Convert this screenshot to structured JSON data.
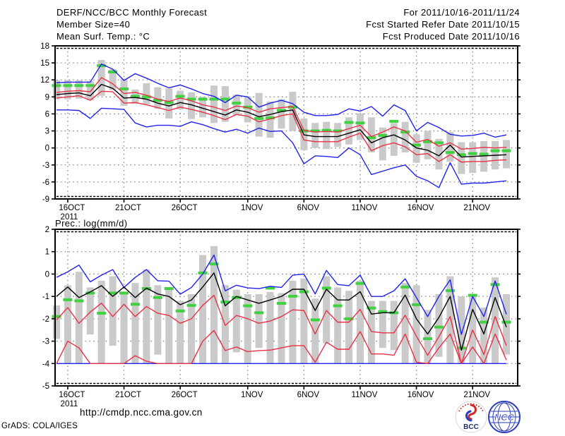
{
  "header": {
    "left": [
      "DERF/NCC/BCC Monthly Forecast",
      "Member Size=40",
      "Mean Surf. Temp.: °C"
    ],
    "right": [
      "For 2011/10/16-2011/11/24",
      "Fcst Started Refer Date 2011/10/15",
      "Fcst Produced Date 2011/10/16"
    ]
  },
  "footer": {
    "url": "http://cmdp.ncc.cma.gov.cn",
    "credit": "GrADS: COLA/IGES",
    "logo_bcc_label": "BCC",
    "logo_ncc_label": "NCC"
  },
  "colors": {
    "blue": "#2222ee",
    "red": "#e83248",
    "black": "#000000",
    "green": "#3fd13f",
    "gray_bar": "#cacaca",
    "grid": "#8a8a8a",
    "logo_red": "#cc2a2a",
    "logo_blue": "#2d3fba"
  },
  "chart_data": [
    {
      "type": "line",
      "title": "Mean Surf. Temp.: °C",
      "n_points": 41,
      "x_start": "15OCT2011",
      "ylim": [
        -9,
        18
      ],
      "yticks": [
        18,
        15,
        12,
        9,
        6,
        3,
        0,
        -3,
        -6,
        -9
      ],
      "xticks": [
        {
          "label": "16OCT",
          "day": 1,
          "sublabel": "2011"
        },
        {
          "label": "21OCT",
          "day": 6
        },
        {
          "label": "26OCT",
          "day": 11
        },
        {
          "label": "1NOV",
          "day": 17
        },
        {
          "label": "6NOV",
          "day": 22
        },
        {
          "label": "11NOV",
          "day": 27
        },
        {
          "label": "16NOV",
          "day": 32
        },
        {
          "label": "21NOV",
          "day": 37
        }
      ],
      "series": [
        {
          "name": "ensemble-max",
          "color": "blue",
          "values": [
            11.5,
            11.6,
            11.6,
            11.6,
            14.8,
            13.9,
            11.9,
            13.1,
            12.3,
            11.4,
            10.6,
            11.1,
            10.4,
            9.6,
            9.1,
            8.0,
            9.3,
            9.0,
            7.2,
            7.9,
            8.4,
            7.8,
            6.3,
            5.7,
            5.7,
            5.9,
            6.9,
            6.5,
            7.3,
            5.6,
            7.6,
            6.6,
            3.0,
            4.5,
            3.6,
            2.4,
            2.1,
            2.2,
            2.6,
            1.9,
            2.3
          ]
        },
        {
          "name": "upper-quartile",
          "color": "red",
          "values": [
            9.8,
            10.0,
            10.1,
            9.9,
            12.4,
            11.3,
            9.6,
            9.8,
            9.3,
            8.6,
            8.2,
            8.8,
            8.3,
            7.6,
            7.2,
            6.6,
            7.4,
            7.1,
            6.3,
            6.9,
            7.1,
            7.3,
            3.1,
            2.8,
            2.9,
            2.8,
            3.4,
            4.0,
            2.0,
            2.8,
            3.7,
            3.0,
            1.0,
            1.5,
            0.3,
            0.9,
            -0.2,
            -0.1,
            0.1,
            0.0,
            0.1
          ]
        },
        {
          "name": "ensemble-mean",
          "color": "black",
          "values": [
            9.4,
            9.6,
            9.7,
            9.2,
            11.2,
            10.5,
            8.8,
            8.9,
            8.6,
            7.9,
            7.4,
            8.0,
            7.6,
            7.0,
            6.4,
            5.8,
            6.7,
            6.3,
            5.5,
            5.9,
            6.4,
            6.7,
            2.3,
            2.0,
            2.0,
            2.0,
            2.6,
            3.2,
            0.9,
            1.8,
            2.3,
            1.4,
            0.0,
            -0.4,
            -1.4,
            0.5,
            -1.6,
            -1.5,
            -1.4,
            -1.3,
            -1.2
          ]
        },
        {
          "name": "lower-quartile",
          "color": "red",
          "values": [
            8.8,
            9.0,
            9.2,
            8.4,
            10.0,
            9.9,
            7.9,
            8.0,
            7.6,
            7.1,
            6.6,
            7.2,
            6.8,
            6.3,
            5.7,
            5.0,
            5.9,
            5.6,
            4.6,
            5.1,
            5.7,
            6.0,
            1.4,
            1.1,
            1.1,
            1.1,
            1.9,
            2.6,
            -0.5,
            0.4,
            0.9,
            0.2,
            -1.2,
            -1.0,
            -2.4,
            -1.2,
            -2.5,
            -2.4,
            -2.4,
            -2.2,
            -2.1
          ]
        },
        {
          "name": "ensemble-min",
          "color": "blue",
          "values": [
            6.7,
            6.7,
            6.6,
            5.2,
            7.0,
            6.9,
            6.8,
            4.4,
            3.7,
            4.0,
            4.0,
            3.8,
            4.6,
            4.1,
            3.4,
            2.8,
            3.3,
            2.6,
            3.5,
            2.9,
            3.0,
            0.9,
            -2.8,
            -1.4,
            -1.5,
            -1.7,
            0.0,
            -1.2,
            -4.7,
            -4.1,
            -3.5,
            -3.0,
            -5.0,
            -5.8,
            -7.0,
            -2.6,
            -6.4,
            -6.2,
            -6.2,
            -6.0,
            -5.8
          ]
        }
      ],
      "green_dashes": {
        "name": "observation",
        "color": "green",
        "values": [
          11.0,
          11.0,
          11.0,
          11.0,
          14.5,
          13.4,
          10.4,
          9.1,
          9.0,
          8.4,
          8.0,
          9.1,
          8.6,
          8.6,
          8.6,
          8.6,
          7.9,
          7.2,
          5.2,
          5.3,
          6.6,
          7.2,
          3.0,
          3.0,
          3.1,
          3.0,
          4.5,
          4.4,
          1.8,
          2.2,
          4.7,
          2.8,
          0.5,
          1.1,
          0.9,
          -0.8,
          -1.2,
          -1.0,
          -1.1,
          -0.5,
          -0.5
        ]
      },
      "spread_bars": [
        [
          8.6,
          11.9
        ],
        [
          8.6,
          11.9
        ],
        [
          8.7,
          11.9
        ],
        [
          8.4,
          11.8
        ],
        [
          9.2,
          15.5
        ],
        [
          10.2,
          13.9
        ],
        [
          7.4,
          12.2
        ],
        [
          7.8,
          10.3
        ],
        [
          7.7,
          11.4
        ],
        [
          6.9,
          10.7
        ],
        [
          5.2,
          10.5
        ],
        [
          6.8,
          10.1
        ],
        [
          5.1,
          9.8
        ],
        [
          5.4,
          9.0
        ],
        [
          4.4,
          11.0
        ],
        [
          4.6,
          10.9
        ],
        [
          5.8,
          9.4
        ],
        [
          4.5,
          9.0
        ],
        [
          2.0,
          9.7
        ],
        [
          1.8,
          8.2
        ],
        [
          3.4,
          8.6
        ],
        [
          3.0,
          9.9
        ],
        [
          -0.4,
          5.2
        ],
        [
          0.0,
          4.4
        ],
        [
          -0.2,
          4.6
        ],
        [
          0.2,
          4.4
        ],
        [
          0.6,
          5.4
        ],
        [
          1.4,
          6.1
        ],
        [
          -0.8,
          5.4
        ],
        [
          -2.2,
          3.6
        ],
        [
          -1.4,
          4.4
        ],
        [
          -0.8,
          4.6
        ],
        [
          -2.6,
          2.4
        ],
        [
          -2.0,
          3.0
        ],
        [
          -3.8,
          1.6
        ],
        [
          -2.4,
          2.8
        ],
        [
          -4.6,
          1.0
        ],
        [
          -4.4,
          1.0
        ],
        [
          -4.2,
          1.2
        ],
        [
          -3.8,
          1.2
        ],
        [
          -3.6,
          1.4
        ]
      ]
    },
    {
      "type": "line",
      "title": "Prec.: log(mm/d)",
      "n_points": 41,
      "x_start": "15OCT2011",
      "ylim": [
        -5,
        2
      ],
      "yticks": [
        2,
        1,
        0,
        -1,
        -2,
        -3,
        -4,
        -5
      ],
      "xticks": [
        {
          "label": "16OCT",
          "day": 1,
          "sublabel": "2011"
        },
        {
          "label": "21OCT",
          "day": 6
        },
        {
          "label": "26OCT",
          "day": 11
        },
        {
          "label": "1NOV",
          "day": 17
        },
        {
          "label": "6NOV",
          "day": 22
        },
        {
          "label": "11NOV",
          "day": 27
        },
        {
          "label": "16NOV",
          "day": 32
        },
        {
          "label": "21NOV",
          "day": 37
        }
      ],
      "series": [
        {
          "name": "ensemble-max",
          "color": "blue",
          "values": [
            -0.15,
            0.1,
            0.4,
            -0.35,
            -0.05,
            0.2,
            -0.6,
            -0.15,
            0.2,
            -0.3,
            -0.32,
            -0.9,
            -0.6,
            0.0,
            0.85,
            -0.75,
            -0.5,
            -0.62,
            -0.65,
            -0.55,
            -0.6,
            -0.05,
            0.0,
            -0.89,
            0.16,
            -0.47,
            -0.52,
            -0.05,
            -1.0,
            -1.0,
            -0.75,
            -0.21,
            -1.05,
            -1.9,
            -1.0,
            -0.26,
            -2.7,
            -1.0,
            -1.9,
            -0.31,
            -1.8
          ]
        },
        {
          "name": "ensemble-mean",
          "color": "black",
          "values": [
            -1.0,
            -0.58,
            -1.05,
            -0.8,
            -0.52,
            -1.0,
            -0.58,
            -1.05,
            -0.63,
            -0.89,
            -1.0,
            -1.37,
            -1.16,
            -0.58,
            0.05,
            -1.42,
            -1.0,
            -1.16,
            -1.31,
            -1.16,
            -1.0,
            -0.68,
            -0.68,
            -1.63,
            -0.68,
            -1.16,
            -1.16,
            -0.79,
            -1.79,
            -1.73,
            -1.73,
            -0.94,
            -2.0,
            -2.68,
            -1.94,
            -1.0,
            -3.4,
            -1.58,
            -2.68,
            -1.05,
            -2.37
          ]
        },
        {
          "name": "upper-quartile",
          "color": "red",
          "values": [
            -2.05,
            -1.5,
            -2.2,
            -1.7,
            -1.3,
            -1.9,
            -1.35,
            -1.9,
            -1.45,
            -1.75,
            -1.85,
            -2.2,
            -2.0,
            -1.4,
            -0.95,
            -2.3,
            -1.85,
            -2.0,
            -2.2,
            -2.1,
            -1.9,
            -1.6,
            -1.63,
            -2.68,
            -1.63,
            -2.15,
            -2.15,
            -1.58,
            -2.57,
            -2.63,
            -2.63,
            -1.84,
            -2.78,
            -3.63,
            -2.8,
            -1.9,
            -4.0,
            -2.5,
            -3.6,
            -1.9,
            -3.2
          ]
        },
        {
          "name": "lower-quartile",
          "color": "red",
          "values": [
            -4,
            -3.0,
            -3.3,
            -4,
            -4,
            -4,
            -4,
            -3.65,
            -3.9,
            -4,
            -4,
            -4,
            -4,
            -3.0,
            -2.52,
            -3.42,
            -3.26,
            -3.47,
            -3.42,
            -3.4,
            -3.3,
            -3.2,
            -3.2,
            -3.94,
            -3.05,
            -3.36,
            -3.36,
            -2.57,
            -3.57,
            -3.57,
            -3.63,
            -2.68,
            -3.94,
            -4,
            -3.3,
            -2.68,
            -4,
            -3.26,
            -4,
            -2.68,
            -3.84
          ]
        },
        {
          "name": "ensemble-min",
          "color": "blue",
          "values": [
            -4,
            -4,
            -4,
            -4,
            -4,
            -4,
            -4,
            -4,
            -4,
            -4,
            -4,
            -4,
            -4,
            -4,
            -4,
            -4,
            -4,
            -4,
            -4,
            -4,
            -4,
            -4,
            -4,
            -4,
            -4,
            -4,
            -4,
            -4,
            -4,
            -4,
            -4,
            -4,
            -4,
            -4,
            -4,
            -4,
            -4,
            -4,
            -4,
            -4,
            -4
          ]
        }
      ],
      "green_dashes": {
        "name": "observation",
        "color": "green",
        "values": [
          -1.9,
          -1.15,
          -1.2,
          -0.85,
          -1.75,
          -0.85,
          -0.85,
          -1.35,
          -0.65,
          -1.05,
          -0.65,
          -1.65,
          -1.4,
          0.05,
          0.45,
          -1.25,
          -1.05,
          -1.42,
          -1.73,
          -0.63,
          -1.31,
          -0.99,
          -0.79,
          -2.05,
          -0.63,
          -1.42,
          -2.0,
          -0.42,
          -1.52,
          -1.68,
          -1.73,
          -0.58,
          -1.37,
          -2.89,
          -2.37,
          -0.74,
          -3.31,
          -0.95,
          -2.15,
          -0.47,
          -2.15
        ]
      },
      "spread_bars": [
        [
          -2.9,
          -1.4
        ],
        [
          -4,
          -0.5
        ],
        [
          -4,
          0.1
        ],
        [
          -2.7,
          -0.6
        ],
        [
          -4,
          -0.3
        ],
        [
          -3.2,
          -0.1
        ],
        [
          -4,
          -0.9
        ],
        [
          -4,
          -0.4
        ],
        [
          -4,
          0.2
        ],
        [
          -3.6,
          -0.5
        ],
        [
          -4,
          -0.6
        ],
        [
          -4,
          -1.2
        ],
        [
          -4,
          -0.9
        ],
        [
          -4,
          0.85
        ],
        [
          -4,
          1.25
        ],
        [
          -4,
          -0.5
        ],
        [
          -3.5,
          -0.7
        ],
        [
          -4,
          -0.9
        ],
        [
          -3.3,
          -0.9
        ],
        [
          -4,
          -0.8
        ],
        [
          -4,
          -0.85
        ],
        [
          -4,
          -0.3
        ],
        [
          -4,
          -0.2
        ],
        [
          -4,
          -1.1
        ],
        [
          -3.1,
          -0.1
        ],
        [
          -4,
          -0.6
        ],
        [
          -4,
          -0.75
        ],
        [
          -4,
          -0.3
        ],
        [
          -4,
          -1.2
        ],
        [
          -3.3,
          -1.2
        ],
        [
          -3.4,
          -1.2
        ],
        [
          -4,
          -0.4
        ],
        [
          -4,
          -0.5
        ],
        [
          -4,
          -1.6
        ],
        [
          -3.7,
          -0.9
        ],
        [
          -4,
          -0.1
        ],
        [
          -4,
          -1.0
        ],
        [
          -4,
          -0.9
        ],
        [
          -4,
          -1.5
        ],
        [
          -4,
          -0.15
        ],
        [
          -3.6,
          -0.9
        ]
      ]
    }
  ]
}
